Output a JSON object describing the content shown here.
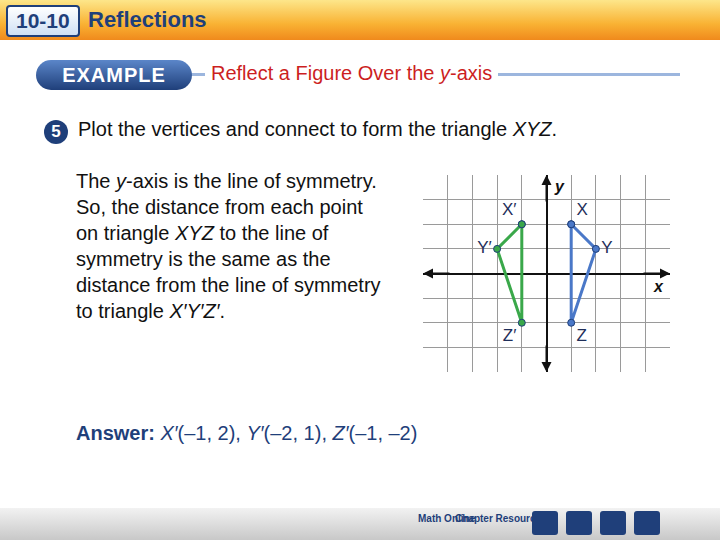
{
  "header": {
    "number": "10-10",
    "title": "Reflections"
  },
  "example": {
    "label": "EXAMPLE",
    "title": [
      "Reflect a Figure Over the ",
      {
        "i": "y"
      },
      "-axis"
    ]
  },
  "step": {
    "number": "5",
    "text": [
      "Plot the vertices and connect to form the triangle ",
      {
        "i": "XYZ"
      },
      "."
    ]
  },
  "body": [
    "The ",
    {
      "i": "y"
    },
    "-axis is the line of symmetry. So, the distance from each point on triangle ",
    {
      "i": "XYZ"
    },
    " to the line of symmetry is the same as the distance from the line of symmetry to triangle ",
    {
      "i": "X′Y′Z′"
    },
    "."
  ],
  "answer": [
    {
      "b": "Answer:"
    },
    "  ",
    {
      "i": "X′"
    },
    "(–1, 2), ",
    {
      "i": "Y′"
    },
    "(–2, 1), ",
    {
      "i": "Z′"
    },
    "(–1, –2)"
  ],
  "nav": [
    "Math Online",
    "Chapter Resources"
  ],
  "chart_data": {
    "type": "scatter",
    "xlabel": "x",
    "ylabel": "y",
    "xlim": [
      -5,
      5
    ],
    "xticks": [
      -5,
      -4,
      -3,
      -2,
      -1,
      0,
      1,
      2,
      3,
      4,
      5
    ],
    "ylim": [
      -4,
      4
    ],
    "yticks": [
      -4,
      -3,
      -2,
      -1,
      0,
      1,
      2,
      3,
      4
    ],
    "grid": true,
    "tick_labels": false,
    "series": [
      {
        "color": "#4a78c8",
        "marker": "circle",
        "line_style": "solid",
        "x": [
          1,
          2,
          1
        ],
        "y": [
          2,
          1,
          -2
        ],
        "labels": [
          "X",
          "Y",
          "Z"
        ]
      },
      {
        "color": "#3aa84a",
        "marker": "circle",
        "line_style": "solid",
        "x": [
          -1,
          -2,
          -1
        ],
        "y": [
          2,
          1,
          -2
        ],
        "labels": [
          "X′",
          "Y′",
          "Z′"
        ]
      }
    ]
  }
}
